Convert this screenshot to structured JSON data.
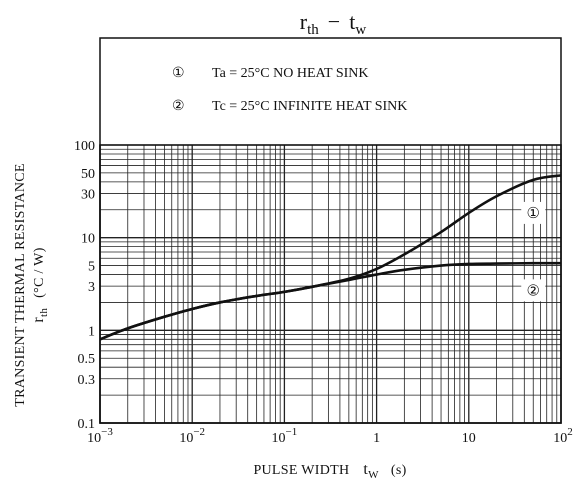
{
  "chart_data": {
    "type": "line",
    "title": "r_th − t_w",
    "title_parts": {
      "main": "r",
      "main_sub": "th",
      "dash": "−",
      "second": "t",
      "second_sub": "w"
    },
    "xlabel": {
      "text": "PULSE WIDTH",
      "symbol": "t",
      "symbol_sub": "W",
      "unit": "(s)"
    },
    "ylabel": {
      "line1": "TRANSIENT THERMAL RESISTANCE",
      "symbol": "r",
      "symbol_sub": "th",
      "unit": "(°C / W)"
    },
    "x_scale": "log",
    "y_scale": "log",
    "xlim": [
      0.001,
      100
    ],
    "ylim": [
      0.1,
      100
    ],
    "x_ticks": [
      {
        "value": 0.001,
        "base": "10",
        "exp": "−3"
      },
      {
        "value": 0.01,
        "base": "10",
        "exp": "−2"
      },
      {
        "value": 0.1,
        "base": "10",
        "exp": "−1"
      },
      {
        "value": 1,
        "label": "1"
      },
      {
        "value": 10,
        "label": "10"
      },
      {
        "value": 100,
        "base": "10",
        "exp": "2"
      }
    ],
    "y_ticks": [
      {
        "value": 0.1,
        "label": "0.1"
      },
      {
        "value": 0.3,
        "label": "0.3"
      },
      {
        "value": 0.5,
        "label": "0.5"
      },
      {
        "value": 1,
        "label": "1"
      },
      {
        "value": 3,
        "label": "3"
      },
      {
        "value": 5,
        "label": "5"
      },
      {
        "value": 10,
        "label": "10"
      },
      {
        "value": 30,
        "label": "30"
      },
      {
        "value": 50,
        "label": "50"
      },
      {
        "value": 100,
        "label": "100"
      }
    ],
    "grid": true,
    "legend_placement": "top",
    "legend": [
      {
        "marker": "①",
        "text": "Ta = 25°C NO HEAT SINK"
      },
      {
        "marker": "②",
        "text": "Tc = 25°C INFINITE HEAT SINK"
      }
    ],
    "series": [
      {
        "marker": "①",
        "x": [
          0.001,
          0.002,
          0.005,
          0.01,
          0.02,
          0.05,
          0.1,
          0.2,
          0.5,
          1,
          2,
          5,
          10,
          20,
          50,
          100
        ],
        "y": [
          0.8,
          1.05,
          1.4,
          1.7,
          2.0,
          2.35,
          2.6,
          2.95,
          3.6,
          4.6,
          6.6,
          11.5,
          18.5,
          28,
          42,
          47
        ]
      },
      {
        "marker": "②",
        "x": [
          0.001,
          0.002,
          0.005,
          0.01,
          0.02,
          0.05,
          0.1,
          0.2,
          0.5,
          1,
          2,
          5,
          10,
          20,
          50,
          100
        ],
        "y": [
          0.8,
          1.05,
          1.4,
          1.7,
          2.0,
          2.35,
          2.6,
          2.95,
          3.5,
          4.0,
          4.5,
          5.0,
          5.2,
          5.25,
          5.3,
          5.3
        ]
      }
    ]
  }
}
